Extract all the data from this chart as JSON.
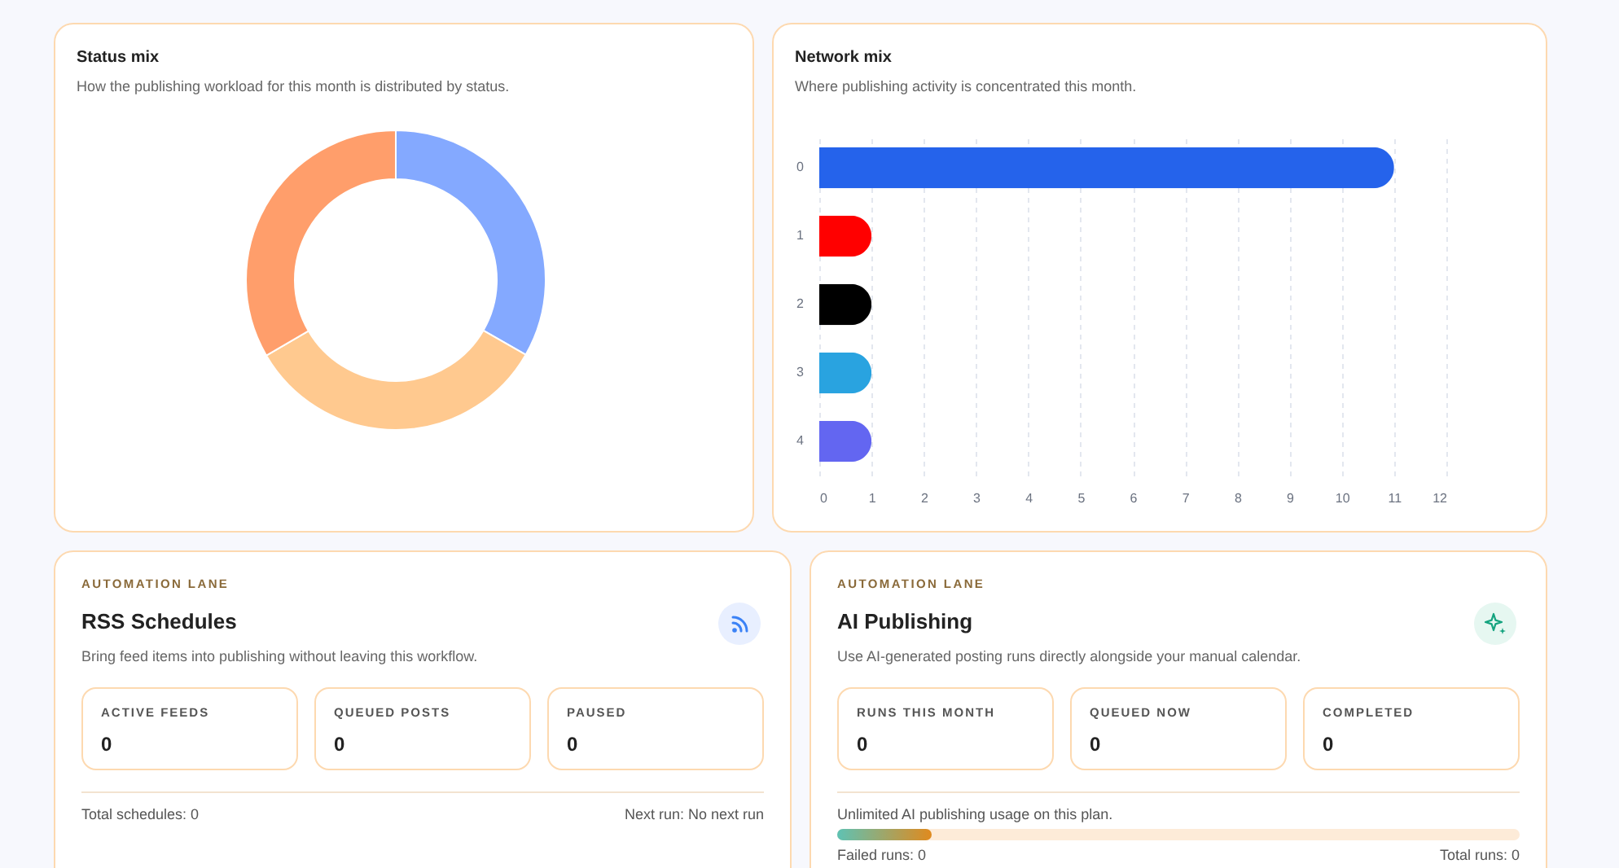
{
  "chart_data": [
    {
      "type": "donut",
      "title": "Status mix",
      "subtitle": "How the publishing workload for this month is distributed by status.",
      "categories": [
        null,
        null,
        null
      ],
      "values": [
        33.3,
        33.3,
        33.4
      ],
      "colors": [
        "#84a9ff",
        "#ffc98f",
        "#ff9e6b"
      ]
    },
    {
      "type": "bar",
      "title": "Network mix",
      "subtitle": "Where publishing activity is concentrated this month.",
      "orientation": "horizontal",
      "categories": [
        "0",
        "1",
        "2",
        "3",
        "4"
      ],
      "values": [
        11,
        1,
        1,
        1,
        1
      ],
      "colors": [
        "#2563eb",
        "#ff0000",
        "#000000",
        "#29a3e0",
        "#6366f1"
      ],
      "xlim": [
        0,
        12
      ],
      "xticks": [
        0,
        1,
        2,
        3,
        4,
        5,
        6,
        7,
        8,
        9,
        10,
        11,
        12
      ],
      "grid": "x"
    },
    {
      "type": "other",
      "title": "RSS Schedules",
      "subtitle": "Bring feed items into publishing without leaving this workflow.",
      "annotations": [
        "AUTOMATION LANE",
        "ACTIVE FEEDS",
        "0",
        "QUEUED POSTS",
        "0",
        "PAUSED",
        "0",
        "Total schedules: 0",
        "Next run: No next run"
      ]
    },
    {
      "type": "other",
      "title": "AI Publishing",
      "subtitle": "Use AI-generated posting runs directly alongside your manual calendar.",
      "annotations": [
        "AUTOMATION LANE",
        "RUNS THIS MONTH",
        "0",
        "QUEUED NOW",
        "0",
        "COMPLETED",
        "0",
        "Unlimited AI publishing usage on this plan.",
        "Failed runs: 0",
        "Total runs: 0"
      ]
    }
  ]
}
